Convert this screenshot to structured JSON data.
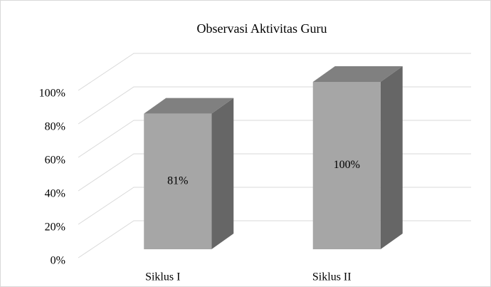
{
  "chart_data": {
    "type": "bar3d",
    "title": "Observasi Aktivitas  Guru",
    "categories": [
      "Siklus I",
      "Siklus II"
    ],
    "values": [
      81,
      100
    ],
    "value_labels": [
      "81%",
      "100%"
    ],
    "colors": {
      "front": "#a6a6a6",
      "top": "#808080",
      "side": "#666666"
    },
    "ylim": [
      0,
      100
    ],
    "yticks": [
      {
        "value": 0,
        "label": "0%"
      },
      {
        "value": 20,
        "label": "20%"
      },
      {
        "value": 40,
        "label": "40%"
      },
      {
        "value": 60,
        "label": "60%"
      },
      {
        "value": 80,
        "label": "80%"
      },
      {
        "value": 100,
        "label": "100%"
      }
    ],
    "grid": true
  }
}
